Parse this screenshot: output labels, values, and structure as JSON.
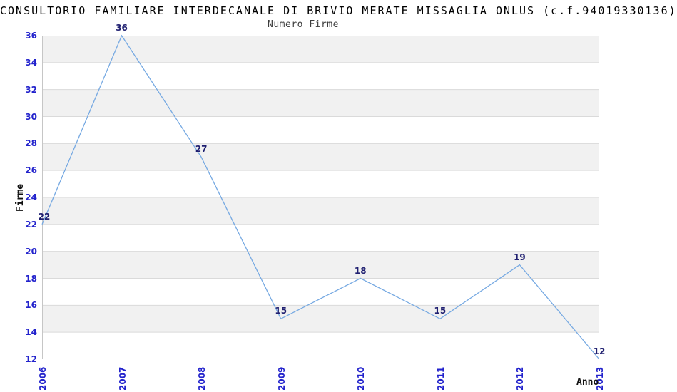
{
  "page": {
    "title": "CONSULTORIO FAMILIARE INTERDECANALE DI BRIVIO MERATE MISSAGLIA ONLUS (c.f.94019330136)"
  },
  "chart_data": {
    "type": "line",
    "title": "Numero Firme",
    "xlabel": "Anno",
    "ylabel": "Firme",
    "categories": [
      "2006",
      "2007",
      "2008",
      "2009",
      "2010",
      "2011",
      "2012",
      "2013"
    ],
    "values": [
      22,
      36,
      27,
      15,
      18,
      15,
      19,
      12
    ],
    "ylim": [
      12,
      36
    ],
    "ytick_step": 2,
    "yticks": [
      12,
      14,
      16,
      18,
      20,
      22,
      24,
      26,
      28,
      30,
      32,
      34,
      36
    ],
    "grid": "horizontal",
    "banding": "alternating horizontal bands, gray band at top (34-36)",
    "legend": "none",
    "point_labels_shown": true
  },
  "colors": {
    "line": "#76a9e2",
    "tick_label": "#2222cc",
    "point_label": "#1f1f70",
    "band_fill": "#f1f1f1",
    "grid_line": "#dadada",
    "plot_border": "#c6c6c6",
    "title_text": "#000000",
    "subtitle_text": "#3c3c3c",
    "axis_title_text": "#111111",
    "background": "#ffffff"
  }
}
